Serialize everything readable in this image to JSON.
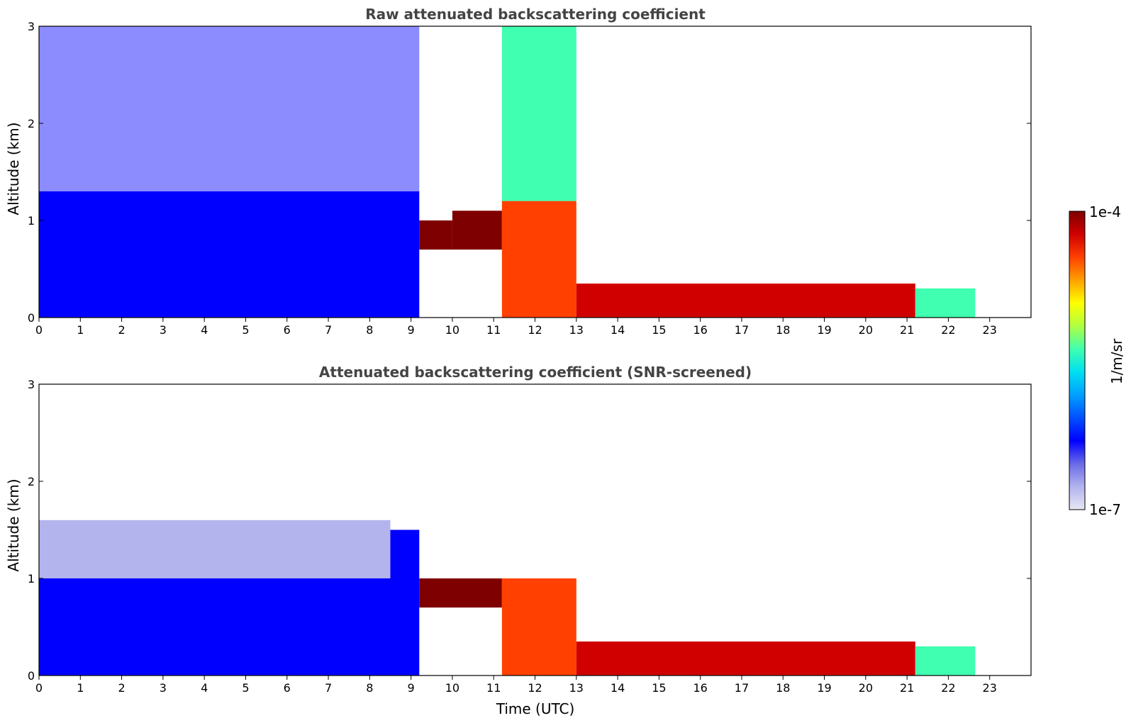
{
  "chart_data": [
    {
      "type": "heatmap",
      "title": "Raw attenuated backscattering coefficient",
      "xlabel": "",
      "ylabel": "Altitude (km)",
      "xlim": [
        0,
        24
      ],
      "ylim": [
        0,
        3
      ],
      "x_ticks": [
        "0",
        "1",
        "2",
        "3",
        "4",
        "5",
        "6",
        "7",
        "8",
        "9",
        "10",
        "11",
        "12",
        "13",
        "14",
        "15",
        "16",
        "17",
        "18",
        "19",
        "20",
        "21",
        "22",
        "23"
      ],
      "y_ticks": [
        "0",
        "1",
        "2",
        "3"
      ],
      "data_extent_hours": [
        0,
        22.65
      ],
      "grid": false,
      "regions": [
        {
          "x": [
            0,
            9.2
          ],
          "y": [
            0,
            1.3
          ],
          "level": 0.25
        },
        {
          "x": [
            0,
            9.2
          ],
          "y": [
            1.3,
            3.0
          ],
          "level": 0.2,
          "noise": true
        },
        {
          "x": [
            9.2,
            10.0
          ],
          "y": [
            0.7,
            1.0
          ],
          "level": 1.0
        },
        {
          "x": [
            10.0,
            11.2
          ],
          "y": [
            0.7,
            1.1
          ],
          "level": 1.0
        },
        {
          "x": [
            11.2,
            13.0
          ],
          "y": [
            0,
            1.2
          ],
          "level": 0.85
        },
        {
          "x": [
            11.2,
            13.0
          ],
          "y": [
            1.2,
            3.0
          ],
          "level": 0.5
        },
        {
          "x": [
            13.0,
            21.2
          ],
          "y": [
            0,
            0.35
          ],
          "level": 0.95
        },
        {
          "x": [
            21.2,
            22.65
          ],
          "y": [
            0,
            0.3
          ],
          "level": 0.5
        }
      ]
    },
    {
      "type": "heatmap",
      "title": "Attenuated backscattering coefficient (SNR-screened)",
      "xlabel": "Time (UTC)",
      "ylabel": "Altitude (km)",
      "xlim": [
        0,
        24
      ],
      "ylim": [
        0,
        3
      ],
      "x_ticks": [
        "0",
        "1",
        "2",
        "3",
        "4",
        "5",
        "6",
        "7",
        "8",
        "9",
        "10",
        "11",
        "12",
        "13",
        "14",
        "15",
        "16",
        "17",
        "18",
        "19",
        "20",
        "21",
        "22",
        "23"
      ],
      "y_ticks": [
        "0",
        "1",
        "2",
        "3"
      ],
      "data_extent_hours": [
        0,
        22.65
      ],
      "grid": false,
      "regions": [
        {
          "x": [
            0,
            9.2
          ],
          "y": [
            0,
            1.5
          ],
          "level": 0.25
        },
        {
          "x": [
            0,
            8.5
          ],
          "y": [
            1.0,
            1.6
          ],
          "level": 0.08
        },
        {
          "x": [
            9.2,
            11.2
          ],
          "y": [
            0.7,
            1.0
          ],
          "level": 1.0
        },
        {
          "x": [
            11.2,
            13.0
          ],
          "y": [
            0,
            1.0
          ],
          "level": 0.85
        },
        {
          "x": [
            13.0,
            21.2
          ],
          "y": [
            0,
            0.35
          ],
          "level": 0.95
        },
        {
          "x": [
            21.2,
            22.65
          ],
          "y": [
            0,
            0.3
          ],
          "level": 0.5
        }
      ]
    }
  ],
  "colorbar": {
    "label": "1/m/sr",
    "max_label": "1e-4",
    "min_label": "1e-7",
    "scale": "log",
    "colors": [
      "#e6e6f5",
      "#b3b3ee",
      "#6a6ae8",
      "#0000ff",
      "#0050ff",
      "#00a0ff",
      "#00e0f0",
      "#40ffb0",
      "#b0ff40",
      "#ffff00",
      "#ffa000",
      "#ff4000",
      "#d00000",
      "#7f0000"
    ]
  }
}
